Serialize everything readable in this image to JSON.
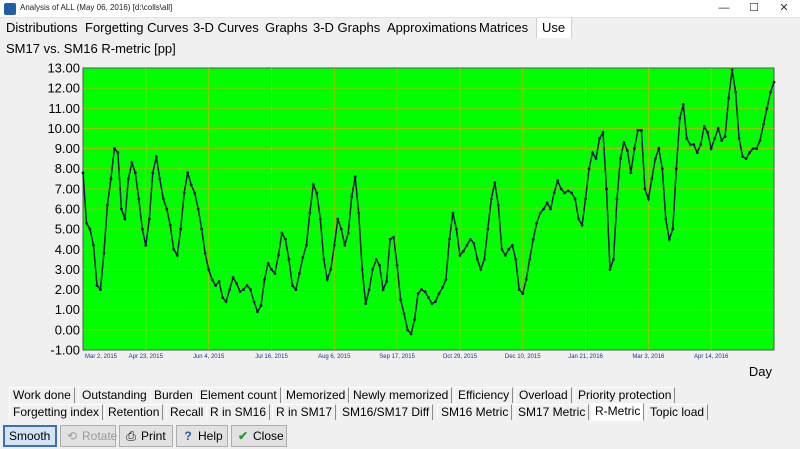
{
  "window": {
    "title": "Analysis of ALL (May 06, 2016) [d:\\colls\\all]",
    "minimize": "—",
    "maximize": "☐",
    "close": "✕"
  },
  "menu": [
    "Distributions",
    "Forgetting Curves",
    "3-D Curves",
    "Graphs",
    "3-D Graphs",
    "Approximations",
    "Matrices",
    "Use"
  ],
  "chart_title": "SM17 vs. SM16 R-metric [pp]",
  "tabs_row1": [
    "Work done",
    "Outstanding",
    "Burden",
    "Element count",
    "Memorized",
    "Newly memorized",
    "Efficiency",
    "Overload",
    "Priority protection"
  ],
  "tabs_row2": [
    "Forgetting index",
    "Retention",
    "Recall",
    "R in SM16",
    "R in SM17",
    "SM16/SM17 Diff",
    "SM16 Metric",
    "SM17 Metric",
    "R-Metric",
    "Topic load"
  ],
  "buttons": {
    "smooth": "Smooth",
    "rotate": "Rotate",
    "print": "Print",
    "help": "Help",
    "close": "Close"
  },
  "colors": {
    "plot_bg": "#00ff00",
    "line": "#1a1a4a",
    "grid": "#b8b800",
    "date_text": "#1f2f9a"
  },
  "chart_data": {
    "type": "line",
    "title": "SM17 vs. SM16 R-metric [pp]",
    "xlabel": "Day",
    "ylabel": "",
    "ylim": [
      -1,
      13
    ],
    "yticks": [
      "13.00",
      "12.00",
      "11.00",
      "10.00",
      "9.00",
      "8.00",
      "7.00",
      "6.00",
      "5.00",
      "4.00",
      "3.00",
      "2.00",
      "1.00",
      "0.00",
      "-1.00"
    ],
    "x_tick_labels": [
      "Mar 2, 2015",
      "Apr 23, 2015",
      "Jun 4, 2015",
      "Jul 16, 2015",
      "Aug 6, 2015",
      "Sep 17, 2015",
      "Oct 29, 2015",
      "Dec 10, 2015",
      "Jan 21, 2016",
      "Mar 3, 2016",
      "Apr 14, 2016"
    ],
    "grid": true,
    "series": [
      {
        "values": [
          7.8,
          5.3,
          5.0,
          4.2,
          2.2,
          2.0,
          3.8,
          6.2,
          7.5,
          9.0,
          8.8,
          6.0,
          5.5,
          7.5,
          8.3,
          7.8,
          6.5,
          5.0,
          4.2,
          5.5,
          7.8,
          8.6,
          7.5,
          6.5,
          6.0,
          5.2,
          4.0,
          3.7,
          5.0,
          6.8,
          7.8,
          7.2,
          6.8,
          6.0,
          5.0,
          3.8,
          3.0,
          2.5,
          2.2,
          2.4,
          1.6,
          1.4,
          2.0,
          2.6,
          2.3,
          1.9,
          2.0,
          2.2,
          2.0,
          1.4,
          0.9,
          1.2,
          2.5,
          3.3,
          3.0,
          2.8,
          3.7,
          4.8,
          4.5,
          3.5,
          2.2,
          2.0,
          2.8,
          3.6,
          4.2,
          5.8,
          7.2,
          6.8,
          5.5,
          3.5,
          2.5,
          3.0,
          4.2,
          5.5,
          5.0,
          4.2,
          4.8,
          6.6,
          7.6,
          5.8,
          3.0,
          1.3,
          2.0,
          3.0,
          3.5,
          3.2,
          2.0,
          2.4,
          4.5,
          4.6,
          3.2,
          1.5,
          0.8,
          0.0,
          -0.2,
          0.5,
          1.8,
          2.0,
          1.9,
          1.6,
          1.3,
          1.4,
          1.8,
          2.1,
          2.5,
          4.5,
          5.8,
          5.0,
          3.7,
          3.9,
          4.2,
          4.5,
          4.3,
          3.5,
          3.0,
          3.5,
          5.0,
          6.5,
          7.3,
          6.2,
          4.0,
          3.7,
          4.0,
          4.2,
          3.5,
          2.0,
          1.8,
          2.5,
          3.5,
          4.5,
          5.3,
          5.8,
          6.0,
          6.3,
          6.0,
          6.8,
          7.4,
          7.0,
          6.8,
          6.9,
          6.8,
          6.5,
          5.5,
          5.2,
          6.5,
          8.0,
          8.8,
          8.5,
          9.5,
          9.8,
          7.0,
          3.0,
          3.5,
          6.5,
          8.5,
          9.3,
          8.9,
          7.8,
          9.0,
          9.9,
          9.9,
          7.0,
          6.5,
          7.5,
          8.5,
          9.0,
          8.0,
          5.5,
          4.5,
          5.0,
          8.0,
          10.5,
          11.2,
          9.5,
          9.2,
          9.2,
          8.8,
          9.2,
          10.1,
          9.8,
          9.0,
          9.5,
          10.0,
          9.4,
          9.6,
          11.5,
          12.9,
          11.8,
          9.5,
          8.6,
          8.5,
          8.8,
          9.0,
          9.0,
          9.4,
          10.2,
          11.0,
          11.8,
          12.3
        ]
      }
    ]
  }
}
